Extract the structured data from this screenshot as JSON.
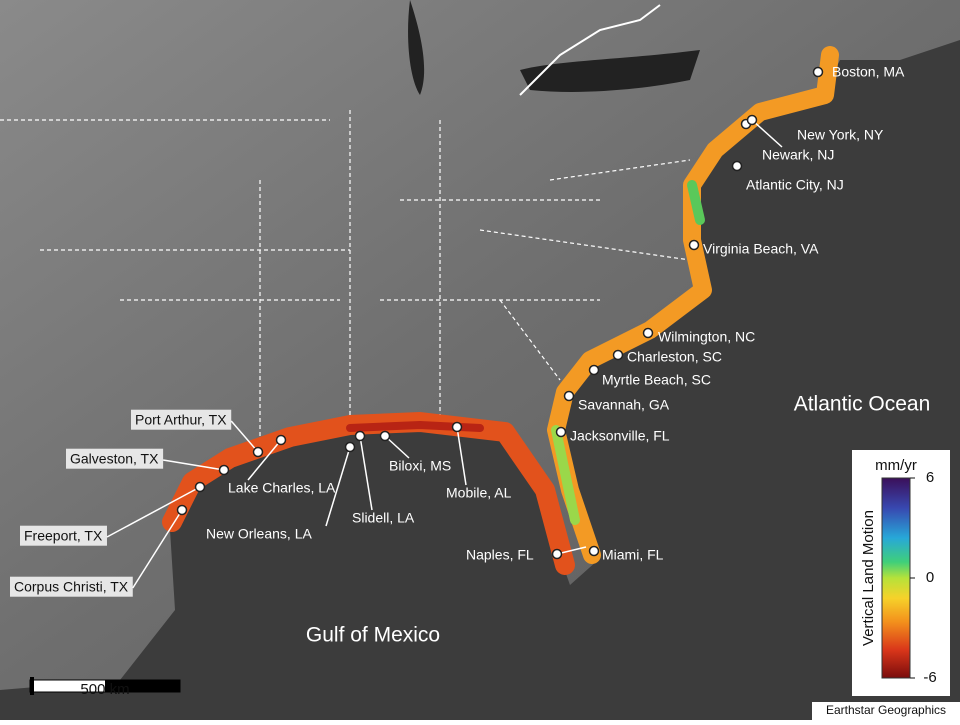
{
  "map": {
    "cities": [
      "Boston, MA",
      "New York, NY",
      "Newark, NJ",
      "Atlantic City, NJ",
      "Virginia Beach, VA",
      "Wilmington, NC",
      "Charleston, SC",
      "Myrtle Beach, SC",
      "Savannah, GA",
      "Jacksonville, FL",
      "Miami, FL",
      "Naples, FL",
      "Mobile, AL",
      "Biloxi, MS",
      "Slidell, LA",
      "New Orleans, LA",
      "Lake Charles, LA",
      "Port Arthur, TX",
      "Galveston, TX",
      "Freeport, TX",
      "Corpus Christi, TX"
    ],
    "water_labels": [
      "Atlantic Ocean",
      "Gulf of Mexico"
    ],
    "legend": {
      "unit": "mm/yr",
      "label": "Vertical Land Motion",
      "lim": [
        -6,
        6
      ],
      "ticks": [
        6,
        0,
        -6
      ]
    },
    "scale_bar": "500 km",
    "credit": "Earthstar Geographics"
  }
}
